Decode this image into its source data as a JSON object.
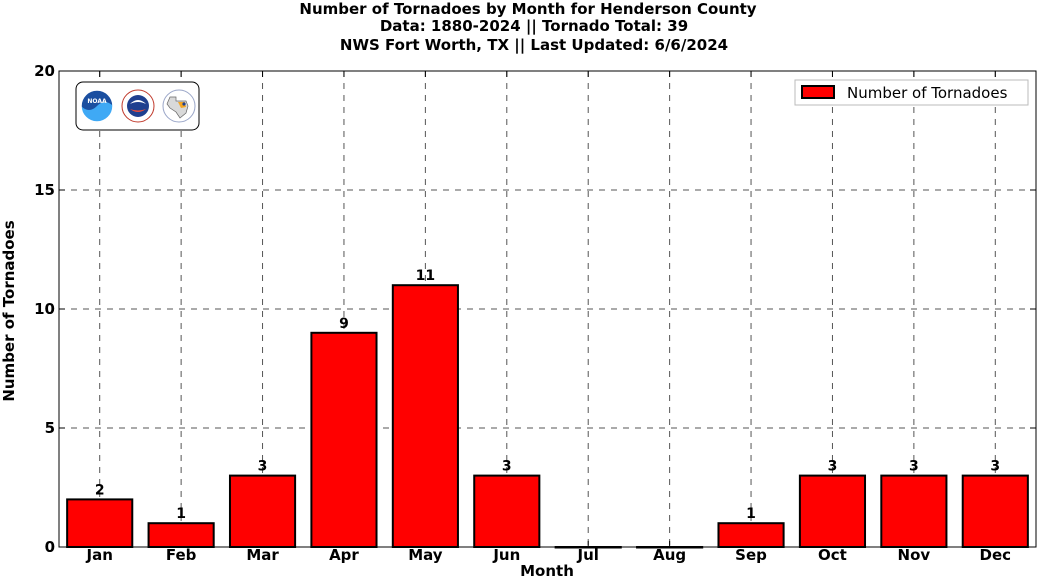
{
  "chart_data": {
    "type": "bar",
    "title_lines": [
      "Number of Tornadoes by Month for Henderson County",
      "Data: 1880-2024 || Tornado Total: 39",
      "NWS Fort Worth, TX || Last Updated: 6/6/2024"
    ],
    "xlabel": "Month",
    "ylabel": "Number of Tornadoes",
    "categories": [
      "Jan",
      "Feb",
      "Mar",
      "Apr",
      "May",
      "Jun",
      "Jul",
      "Aug",
      "Sep",
      "Oct",
      "Nov",
      "Dec"
    ],
    "series": [
      {
        "name": "Number of Tornadoes",
        "values": [
          2,
          1,
          3,
          9,
          11,
          3,
          0,
          0,
          1,
          3,
          3,
          3
        ]
      }
    ],
    "data_labels": [
      "2",
      "1",
      "3",
      "9",
      "11",
      "3",
      "",
      "",
      "1",
      "3",
      "3",
      "3"
    ],
    "ylim": [
      0,
      20
    ],
    "yticks": [
      0,
      5,
      10,
      15,
      20
    ],
    "grid": true,
    "legend_position": "top-right",
    "colors": {
      "bar": "#ff0000",
      "edge": "#000000",
      "grid": "#555555"
    }
  },
  "logos": {
    "noaa_text": "NOAA",
    "icons": [
      "noaa-logo-icon",
      "nws-logo-icon",
      "texas-map-logo-icon"
    ]
  }
}
